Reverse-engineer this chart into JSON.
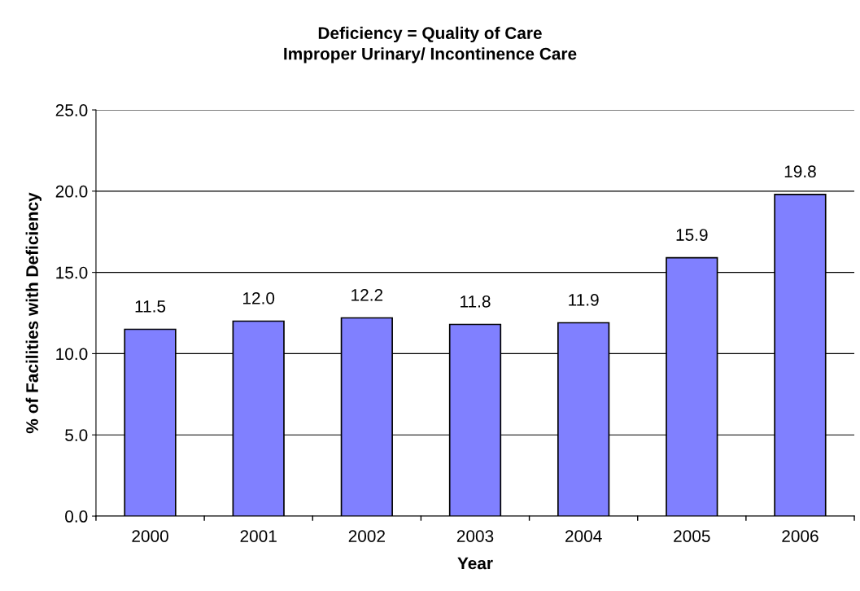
{
  "chart_data": {
    "type": "bar",
    "title": "Deficiency = Quality of Care\nImproper Urinary/ Incontinence Care",
    "xlabel": "Year",
    "ylabel": "% of Facilities with Deficiency",
    "categories": [
      "2000",
      "2001",
      "2002",
      "2003",
      "2004",
      "2005",
      "2006"
    ],
    "values": [
      11.5,
      12.0,
      12.2,
      11.8,
      11.9,
      15.9,
      19.8
    ],
    "value_labels": [
      "11.5",
      "12.0",
      "12.2",
      "11.8",
      "11.9",
      "15.9",
      "19.8"
    ],
    "color": "#8080ff",
    "ylim": [
      0,
      25
    ],
    "yticks": [
      {
        "value": 0,
        "label": "0.0"
      },
      {
        "value": 5,
        "label": "5.0"
      },
      {
        "value": 10,
        "label": "10.0"
      },
      {
        "value": 15,
        "label": "15.0"
      },
      {
        "value": 20,
        "label": "20.0"
      },
      {
        "value": 25,
        "label": "25.0"
      }
    ],
    "grid": "y"
  }
}
